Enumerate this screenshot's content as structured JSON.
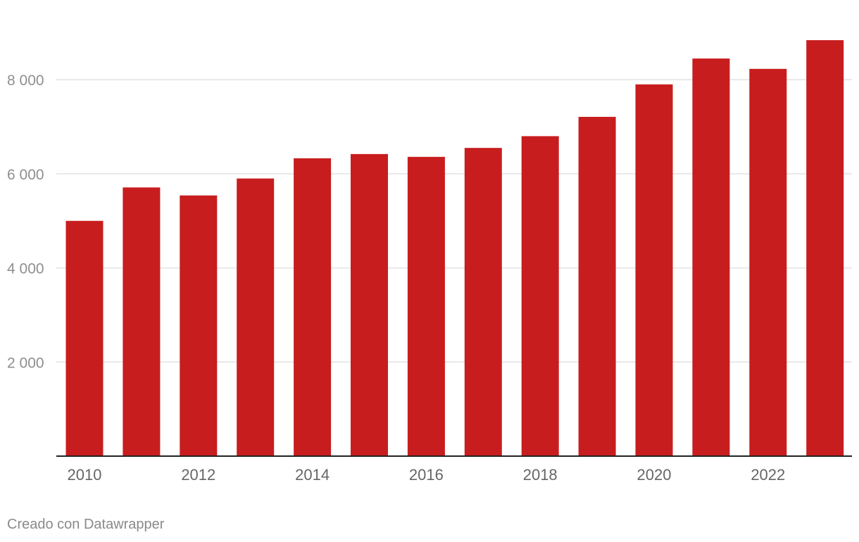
{
  "chart_data": {
    "type": "bar",
    "categories": [
      "2010",
      "2011",
      "2012",
      "2013",
      "2014",
      "2015",
      "2016",
      "2017",
      "2018",
      "2019",
      "2020",
      "2021",
      "2022",
      "2023"
    ],
    "values": [
      5000,
      5710,
      5540,
      5900,
      6330,
      6420,
      6360,
      6550,
      6800,
      7210,
      7900,
      8450,
      8230,
      8840
    ],
    "x_tick_labels": [
      "2010",
      "2012",
      "2014",
      "2016",
      "2018",
      "2020",
      "2022"
    ],
    "y_ticks": [
      2000,
      4000,
      6000,
      8000
    ],
    "y_tick_labels": [
      "2 000",
      "4 000",
      "6 000",
      "8 000"
    ],
    "ylim": [
      0,
      9200
    ],
    "bar_color": "#c81d1e",
    "grid": true,
    "title": "",
    "xlabel": "",
    "ylabel": ""
  },
  "footer": {
    "credit": "Creado con Datawrapper"
  }
}
